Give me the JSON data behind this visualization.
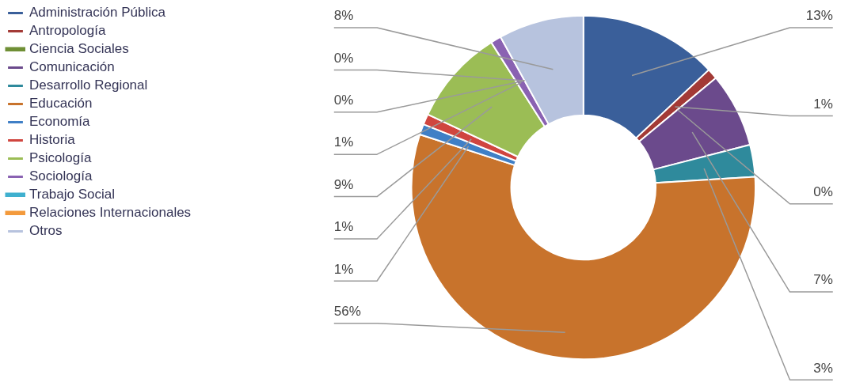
{
  "chart_data": {
    "type": "donut",
    "categories": [
      "Administración Pública",
      "Antropología",
      "Ciencia Sociales",
      "Comunicación",
      "Desarrollo Regional",
      "Educación",
      "Economía",
      "Historia",
      "Psicología",
      "Sociología",
      "Trabajo Social",
      "Relaciones Internacionales",
      "Otros"
    ],
    "values": [
      13,
      1,
      0,
      7,
      3,
      56,
      1,
      1,
      9,
      1,
      0,
      0,
      8
    ],
    "value_labels": [
      "13%",
      "1%",
      "0%",
      "7%",
      "3%",
      "56%",
      "1%",
      "1%",
      "9%",
      "1%",
      "0%",
      "0%",
      "8%"
    ],
    "colors": [
      "#3a5f9a",
      "#a33a36",
      "#6f8f35",
      "#6b4a8c",
      "#2f8a9c",
      "#c8732c",
      "#3f7fc6",
      "#d0453f",
      "#9bbd55",
      "#8a62b2",
      "#3fb0cf",
      "#f39a3c",
      "#b7c3de"
    ],
    "legend": "left"
  }
}
